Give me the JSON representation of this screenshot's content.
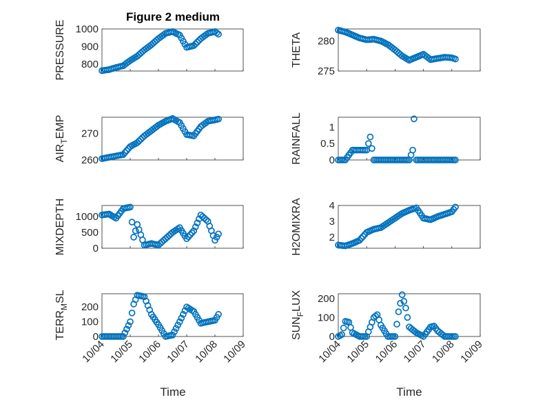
{
  "chart_data": [
    {
      "type": "scatter",
      "title": "Figure 2 medium",
      "xlabel": "",
      "ylabel": "PRESSURE",
      "yticks": [
        "800",
        "900",
        "1000"
      ],
      "ylim": [
        760,
        1000
      ],
      "show_xticks": false,
      "x": [
        "10/04 00:00",
        "10/04 06:00",
        "10/04 12:00",
        "10/04 18:00",
        "10/05 00:00",
        "10/05 06:00",
        "10/05 12:00",
        "10/05 18:00",
        "10/06 00:00",
        "10/06 06:00",
        "10/06 12:00",
        "10/06 18:00",
        "10/07 00:00",
        "10/07 06:00",
        "10/07 12:00",
        "10/07 18:00",
        "10/08 00:00",
        "10/08 03:00"
      ],
      "series": [
        {
          "values": [
            762,
            768,
            780,
            790,
            820,
            845,
            880,
            910,
            945,
            975,
            985,
            965,
            895,
            905,
            945,
            975,
            985,
            970
          ]
        }
      ]
    },
    {
      "type": "scatter",
      "title": "",
      "xlabel": "",
      "ylabel": "THETA",
      "yticks": [
        "275",
        "280"
      ],
      "ylim": [
        275,
        282
      ],
      "show_xticks": false,
      "x": [
        "10/04 00:00",
        "10/04 06:00",
        "10/04 12:00",
        "10/04 18:00",
        "10/05 00:00",
        "10/05 06:00",
        "10/05 12:00",
        "10/05 18:00",
        "10/06 00:00",
        "10/06 06:00",
        "10/06 12:00",
        "10/06 18:00",
        "10/07 00:00",
        "10/07 06:00",
        "10/07 12:00",
        "10/07 18:00",
        "10/08 00:00",
        "10/08 03:00"
      ],
      "series": [
        {
          "values": [
            281.8,
            281.5,
            281,
            280.5,
            280.2,
            280.3,
            280,
            279.4,
            278.5,
            277.5,
            276.8,
            277.3,
            277.8,
            276.9,
            277.1,
            277.3,
            277.2,
            277.0
          ]
        }
      ]
    },
    {
      "type": "scatter",
      "title": "",
      "xlabel": "",
      "ylabel_parts": [
        "AIR",
        "T",
        "EMP"
      ],
      "yticks": [
        "260",
        "270"
      ],
      "ylim": [
        260,
        276
      ],
      "show_xticks": false,
      "x": [
        "10/04 00:00",
        "10/04 06:00",
        "10/04 12:00",
        "10/04 18:00",
        "10/05 00:00",
        "10/05 06:00",
        "10/05 12:00",
        "10/05 18:00",
        "10/06 00:00",
        "10/06 06:00",
        "10/06 12:00",
        "10/06 18:00",
        "10/07 00:00",
        "10/07 06:00",
        "10/07 12:00",
        "10/07 18:00",
        "10/08 00:00",
        "10/08 03:00"
      ],
      "series": [
        {
          "values": [
            260.5,
            261,
            261.5,
            262,
            265,
            266.5,
            269,
            271,
            273,
            274.5,
            275.5,
            274,
            269.5,
            269,
            272.5,
            274.5,
            275,
            275.3
          ]
        }
      ]
    },
    {
      "type": "scatter",
      "title": "",
      "xlabel": "",
      "ylabel": "RAINFALL",
      "yticks": [
        "0",
        "0.5",
        "1"
      ],
      "ylim": [
        0,
        1.3
      ],
      "show_xticks": false,
      "x": [
        "10/04 00:00",
        "10/04 06:00",
        "10/04 12:00",
        "10/04 15:00",
        "10/04 18:00",
        "10/05 00:00",
        "10/05 03:00",
        "10/05 06:00",
        "10/05 12:00",
        "10/05 18:00",
        "10/06 00:00",
        "10/06 06:00",
        "10/06 12:00",
        "10/06 15:00",
        "10/06 16:00",
        "10/06 18:00",
        "10/07 00:00",
        "10/07 06:00",
        "10/07 12:00",
        "10/07 18:00",
        "10/08 00:00",
        "10/08 03:00"
      ],
      "series": [
        {
          "values": [
            0,
            0,
            0.3,
            0.3,
            0.3,
            0.3,
            0.7,
            0,
            0,
            0,
            0,
            0,
            0,
            0.3,
            1.25,
            0,
            0,
            0,
            0,
            0,
            0,
            0
          ]
        }
      ]
    },
    {
      "type": "scatter",
      "title": "",
      "xlabel": "",
      "ylabel": "MIXDEPTH",
      "yticks": [
        "0",
        "500",
        "1000"
      ],
      "ylim": [
        0,
        1350
      ],
      "show_xticks": false,
      "x": [
        "10/04 00:00",
        "10/04 06:00",
        "10/04 12:00",
        "10/04 18:00",
        "10/05 00:00",
        "10/05 03:00",
        "10/05 06:00",
        "10/05 12:00",
        "10/05 18:00",
        "10/06 00:00",
        "10/06 06:00",
        "10/06 12:00",
        "10/06 18:00",
        "10/07 00:00",
        "10/07 06:00",
        "10/07 12:00",
        "10/07 18:00",
        "10/08 00:00",
        "10/08 03:00"
      ],
      "series": [
        {
          "values": [
            1050,
            1080,
            950,
            1250,
            1300,
            350,
            750,
            100,
            150,
            100,
            300,
            500,
            650,
            300,
            550,
            1050,
            850,
            250,
            450
          ]
        }
      ]
    },
    {
      "type": "scatter",
      "title": "",
      "xlabel": "",
      "ylabel": "H2OMIXRA",
      "yticks": [
        "2",
        "3",
        "4"
      ],
      "ylim": [
        1.3,
        4.0
      ],
      "show_xticks": false,
      "x": [
        "10/04 00:00",
        "10/04 06:00",
        "10/04 12:00",
        "10/04 18:00",
        "10/05 00:00",
        "10/05 06:00",
        "10/05 12:00",
        "10/05 18:00",
        "10/06 00:00",
        "10/06 06:00",
        "10/06 12:00",
        "10/06 18:00",
        "10/07 00:00",
        "10/07 06:00",
        "10/07 12:00",
        "10/07 18:00",
        "10/08 00:00",
        "10/08 03:00"
      ],
      "series": [
        {
          "values": [
            1.5,
            1.45,
            1.6,
            1.8,
            2.3,
            2.5,
            2.6,
            2.9,
            3.2,
            3.5,
            3.7,
            3.85,
            3.2,
            3.1,
            3.3,
            3.45,
            3.6,
            3.9
          ]
        }
      ]
    },
    {
      "type": "scatter",
      "title": "",
      "xlabel": "Time",
      "ylabel_parts": [
        "TERR",
        "M",
        "SL"
      ],
      "yticks": [
        "0",
        "100",
        "200"
      ],
      "ylim": [
        0,
        290
      ],
      "show_xticks": true,
      "xticks": [
        "10/04",
        "10/05",
        "10/06",
        "10/07",
        "10/08",
        "10/09"
      ],
      "x": [
        "10/04 00:00",
        "10/04 06:00",
        "10/04 12:00",
        "10/04 18:00",
        "10/05 00:00",
        "10/05 03:00",
        "10/05 06:00",
        "10/05 12:00",
        "10/05 18:00",
        "10/06 00:00",
        "10/06 06:00",
        "10/06 12:00",
        "10/06 18:00",
        "10/07 00:00",
        "10/07 06:00",
        "10/07 12:00",
        "10/07 18:00",
        "10/08 00:00",
        "10/08 03:00"
      ],
      "series": [
        {
          "values": [
            0,
            0,
            0,
            0,
            100,
            220,
            280,
            270,
            150,
            80,
            0,
            10,
            100,
            200,
            170,
            90,
            100,
            110,
            150
          ]
        }
      ]
    },
    {
      "type": "scatter",
      "title": "",
      "xlabel": "Time",
      "ylabel_parts": [
        "SUN",
        "F",
        "LUX"
      ],
      "yticks": [
        "0",
        "100",
        "200"
      ],
      "ylim": [
        0,
        225
      ],
      "show_xticks": true,
      "xticks": [
        "10/04",
        "10/05",
        "10/06",
        "10/07",
        "10/08",
        "10/09"
      ],
      "x": [
        "10/04 00:00",
        "10/04 03:00",
        "10/04 06:00",
        "10/04 09:00",
        "10/04 12:00",
        "10/04 18:00",
        "10/05 00:00",
        "10/05 06:00",
        "10/05 09:00",
        "10/05 12:00",
        "10/05 18:00",
        "10/06 00:00",
        "10/06 03:00",
        "10/06 06:00",
        "10/06 09:00",
        "10/06 12:00",
        "10/06 18:00",
        "10/07 00:00",
        "10/07 06:00",
        "10/07 09:00",
        "10/07 12:00",
        "10/07 18:00",
        "10/08 00:00",
        "10/08 03:00"
      ],
      "series": [
        {
          "values": [
            0,
            10,
            80,
            75,
            20,
            0,
            0,
            100,
            115,
            60,
            0,
            0,
            130,
            220,
            150,
            50,
            20,
            0,
            50,
            55,
            30,
            0,
            0,
            0
          ]
        }
      ]
    }
  ]
}
